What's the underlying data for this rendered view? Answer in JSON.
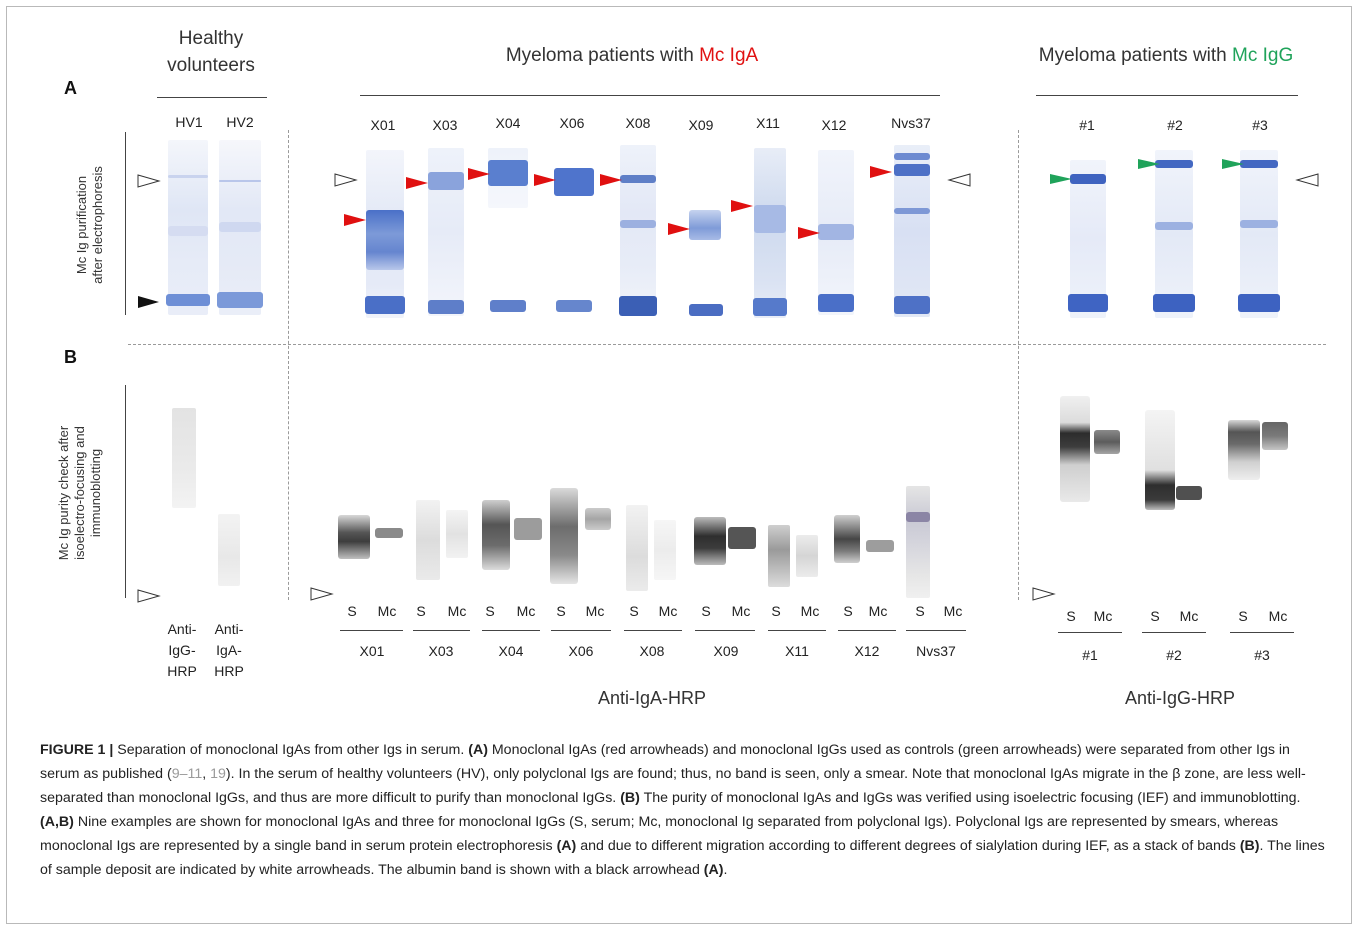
{
  "panels": {
    "a": "A",
    "b": "B"
  },
  "headers": {
    "healthy": [
      "Healthy",
      "volunteers"
    ],
    "iga_prefix": "Myeloma patients with ",
    "iga_highlight": "Mc IgA",
    "igg_prefix": "Myeloma patients with ",
    "igg_highlight": "Mc IgG"
  },
  "side_labels": {
    "a": [
      "Mc Ig purification",
      "after electrophoresis"
    ],
    "b": [
      "Mc Ig purity check after",
      "isoelectro-focusing and",
      "immunoblotting"
    ]
  },
  "lanes_a": {
    "hv": [
      "HV1",
      "HV2"
    ],
    "iga": [
      "X01",
      "X03",
      "X04",
      "X06",
      "X08",
      "X09",
      "X11",
      "X12",
      "Nvs37"
    ],
    "igg": [
      "#1",
      "#2",
      "#3"
    ]
  },
  "sm": {
    "s": "S",
    "mc": "Mc"
  },
  "hv_b_labels": [
    [
      "Anti-",
      "IgG-",
      "HRP"
    ],
    [
      "Anti-",
      "IgA-",
      "HRP"
    ]
  ],
  "antibody": {
    "iga": "Anti-IgA-HRP",
    "igg": "Anti-IgG-HRP"
  },
  "colors": {
    "red_arrow": "#e01010",
    "green_arrow": "#1fa35a",
    "gel_blue": "#3a64c2"
  },
  "caption": {
    "label": "FIGURE 1 |",
    "s1": " Separation of monoclonal IgAs from other Igs in serum. ",
    "a1": "(A)",
    "s2": " Monoclonal IgAs (red arrowheads) and monoclonal IgGs used as controls (green arrowheads) were separated from other Igs in serum as published (",
    "ref1": "9–11",
    "s3": ", ",
    "ref2": "19",
    "s4": "). In the serum of healthy volunteers (HV), only polyclonal Igs are found; thus, no band is seen, only a smear. Note that monoclonal IgAs migrate in the β zone, are less well-separated than monoclonal IgGs, and thus are more difficult to purify than monoclonal IgGs. ",
    "b1": "(B)",
    "s5": " The purity of monoclonal IgAs and IgGs was verified using isoelectric focusing (IEF) and immunoblotting. ",
    "ab": "(A,B)",
    "s6": " Nine examples are shown for monoclonal IgAs and three for monoclonal IgGs (S, serum; Mc, monoclonal Ig separated from polyclonal Igs). Polyclonal Igs are represented by smears, whereas monoclonal Igs are represented by a single band in serum protein electrophoresis ",
    "a2": "(A)",
    "s7": " and due to different migration according to different degrees of sialylation during IEF, as a stack of bands ",
    "b2": "(B)",
    "s8": ". The lines of sample deposit are indicated by white arrowheads. The albumin band is shown with a black arrowhead ",
    "a3": "(A)",
    "s9": "."
  }
}
